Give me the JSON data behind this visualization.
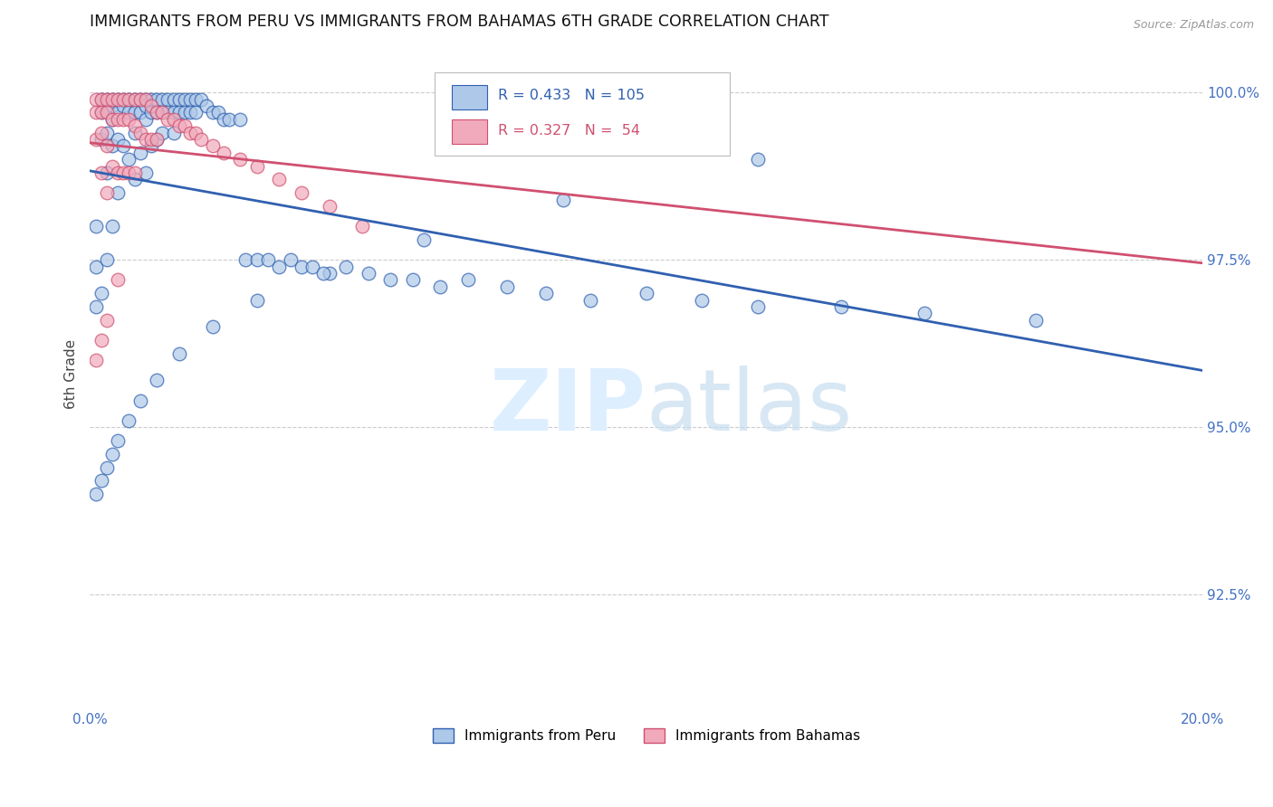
{
  "title": "IMMIGRANTS FROM PERU VS IMMIGRANTS FROM BAHAMAS 6TH GRADE CORRELATION CHART",
  "source": "Source: ZipAtlas.com",
  "ylabel_label": "6th Grade",
  "ylabel_ticks": [
    "92.5%",
    "95.0%",
    "97.5%",
    "100.0%"
  ],
  "ylabel_values": [
    0.925,
    0.95,
    0.975,
    1.0
  ],
  "xlim": [
    0.0,
    0.2
  ],
  "ylim": [
    0.908,
    1.008
  ],
  "legend_peru": "Immigrants from Peru",
  "legend_bahamas": "Immigrants from Bahamas",
  "R_peru": 0.433,
  "N_peru": 105,
  "R_bahamas": 0.327,
  "N_bahamas": 54,
  "color_peru": "#adc8e8",
  "color_bahamas": "#f0aabb",
  "line_color_peru": "#3060b0",
  "line_color_bahamas": "#d05070",
  "label_color_peru": "#3060b0",
  "label_color_bahamas": "#d05070",
  "watermark_color": "#ddeeff",
  "peru_x": [
    0.001,
    0.001,
    0.001,
    0.002,
    0.002,
    0.002,
    0.002,
    0.003,
    0.003,
    0.003,
    0.003,
    0.003,
    0.004,
    0.004,
    0.004,
    0.004,
    0.004,
    0.005,
    0.005,
    0.005,
    0.005,
    0.006,
    0.006,
    0.006,
    0.007,
    0.007,
    0.007,
    0.008,
    0.008,
    0.008,
    0.008,
    0.009,
    0.009,
    0.009,
    0.01,
    0.01,
    0.01,
    0.01,
    0.011,
    0.011,
    0.011,
    0.012,
    0.012,
    0.012,
    0.013,
    0.013,
    0.013,
    0.014,
    0.014,
    0.015,
    0.015,
    0.015,
    0.016,
    0.016,
    0.017,
    0.017,
    0.018,
    0.018,
    0.019,
    0.019,
    0.02,
    0.021,
    0.022,
    0.023,
    0.024,
    0.025,
    0.027,
    0.028,
    0.03,
    0.032,
    0.034,
    0.036,
    0.038,
    0.04,
    0.043,
    0.046,
    0.05,
    0.054,
    0.058,
    0.063,
    0.068,
    0.075,
    0.082,
    0.09,
    0.1,
    0.11,
    0.12,
    0.135,
    0.15,
    0.17,
    0.001,
    0.002,
    0.003,
    0.004,
    0.005,
    0.007,
    0.009,
    0.012,
    0.016,
    0.022,
    0.03,
    0.042,
    0.06,
    0.085,
    0.12
  ],
  "peru_y": [
    0.98,
    0.974,
    0.968,
    0.999,
    0.997,
    0.993,
    0.97,
    0.999,
    0.997,
    0.994,
    0.988,
    0.975,
    0.999,
    0.998,
    0.996,
    0.992,
    0.98,
    0.999,
    0.997,
    0.993,
    0.985,
    0.999,
    0.998,
    0.992,
    0.999,
    0.997,
    0.99,
    0.999,
    0.997,
    0.994,
    0.987,
    0.999,
    0.997,
    0.991,
    0.999,
    0.998,
    0.996,
    0.988,
    0.999,
    0.997,
    0.992,
    0.999,
    0.997,
    0.993,
    0.999,
    0.997,
    0.994,
    0.999,
    0.997,
    0.999,
    0.997,
    0.994,
    0.999,
    0.997,
    0.999,
    0.997,
    0.999,
    0.997,
    0.999,
    0.997,
    0.999,
    0.998,
    0.997,
    0.997,
    0.996,
    0.996,
    0.996,
    0.975,
    0.975,
    0.975,
    0.974,
    0.975,
    0.974,
    0.974,
    0.973,
    0.974,
    0.973,
    0.972,
    0.972,
    0.971,
    0.972,
    0.971,
    0.97,
    0.969,
    0.97,
    0.969,
    0.968,
    0.968,
    0.967,
    0.966,
    0.94,
    0.942,
    0.944,
    0.946,
    0.948,
    0.951,
    0.954,
    0.957,
    0.961,
    0.965,
    0.969,
    0.973,
    0.978,
    0.984,
    0.99
  ],
  "bahamas_x": [
    0.001,
    0.001,
    0.001,
    0.002,
    0.002,
    0.002,
    0.002,
    0.003,
    0.003,
    0.003,
    0.003,
    0.004,
    0.004,
    0.004,
    0.005,
    0.005,
    0.005,
    0.006,
    0.006,
    0.006,
    0.007,
    0.007,
    0.007,
    0.008,
    0.008,
    0.008,
    0.009,
    0.009,
    0.01,
    0.01,
    0.011,
    0.011,
    0.012,
    0.012,
    0.013,
    0.014,
    0.015,
    0.016,
    0.017,
    0.018,
    0.019,
    0.02,
    0.022,
    0.024,
    0.027,
    0.03,
    0.034,
    0.038,
    0.043,
    0.049,
    0.001,
    0.002,
    0.003,
    0.005
  ],
  "bahamas_y": [
    0.999,
    0.997,
    0.993,
    0.999,
    0.997,
    0.994,
    0.988,
    0.999,
    0.997,
    0.992,
    0.985,
    0.999,
    0.996,
    0.989,
    0.999,
    0.996,
    0.988,
    0.999,
    0.996,
    0.988,
    0.999,
    0.996,
    0.988,
    0.999,
    0.995,
    0.988,
    0.999,
    0.994,
    0.999,
    0.993,
    0.998,
    0.993,
    0.997,
    0.993,
    0.997,
    0.996,
    0.996,
    0.995,
    0.995,
    0.994,
    0.994,
    0.993,
    0.992,
    0.991,
    0.99,
    0.989,
    0.987,
    0.985,
    0.983,
    0.98,
    0.96,
    0.963,
    0.966,
    0.972
  ]
}
